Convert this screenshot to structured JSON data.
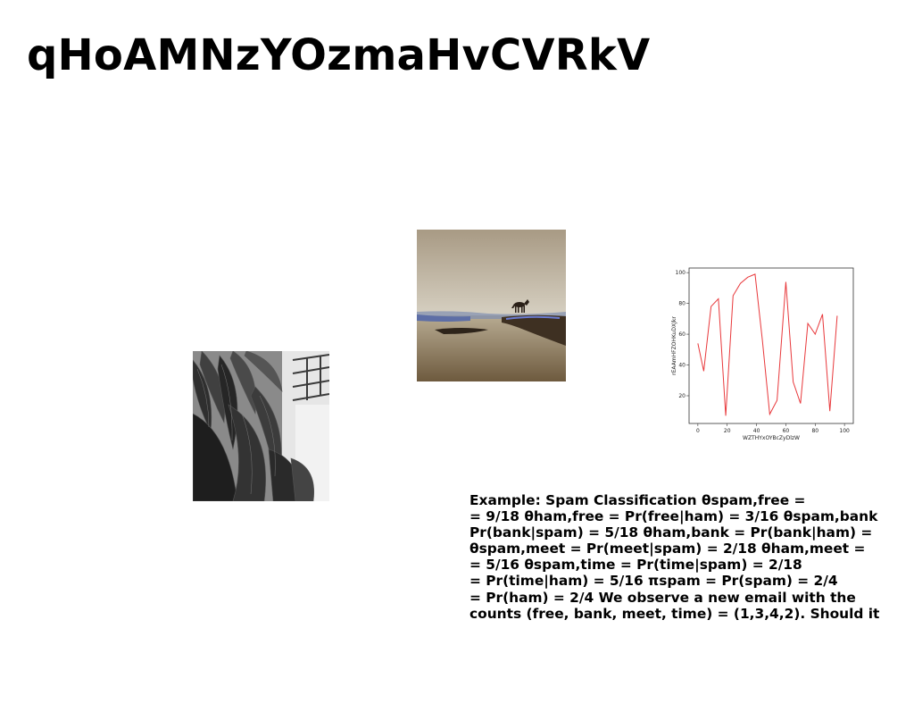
{
  "slide": {
    "title": "qHoAMNzYOzmaHvCVRkV",
    "text_lines": [
      "Example: Spam Classification θspam,free =",
      "= 9/18 θham,free = Pr(free|ham) = 3/16 θspam,bank",
      "Pr(bank|spam) = 5/18 θham,bank = Pr(bank|ham) =",
      "θspam,meet = Pr(meet|spam) = 2/18 θham,meet =",
      "= 5/16 θspam,time = Pr(time|spam) = 2/18",
      "= Pr(time|ham) = 5/16 πspam = Pr(spam) = 2/4",
      "= Pr(ham) = 2/4 We observe a new email with the",
      "counts (free, bank, meet, time) = (1,3,4,2). Should it"
    ]
  },
  "images": {
    "plants": "black-and-white photo of banana plant leaves beside a building with balcony railings",
    "landscape": "sepia photo of a wolf standing on a misty shoreline by water"
  },
  "chart_data": {
    "type": "line",
    "xlabel": "WZTHYxOYBcZyDlzW",
    "ylabel": "rEAAmHFZOHKuDXJkr",
    "xlim": [
      -6,
      106
    ],
    "ylim": [
      2,
      103
    ],
    "xticks": [
      0,
      20,
      40,
      60,
      80,
      100
    ],
    "yticks": [
      20,
      40,
      60,
      80,
      100
    ],
    "grid": false,
    "color": "#e8383b",
    "x": [
      0,
      4,
      9,
      14,
      19,
      24,
      29,
      34,
      39,
      44,
      49,
      54,
      60,
      65,
      70,
      75,
      80,
      85,
      90,
      95
    ],
    "y": [
      54,
      36,
      78,
      83,
      7,
      85,
      93,
      97,
      99,
      56,
      8,
      17,
      94,
      29,
      15,
      67,
      60,
      73,
      10,
      72
    ]
  }
}
